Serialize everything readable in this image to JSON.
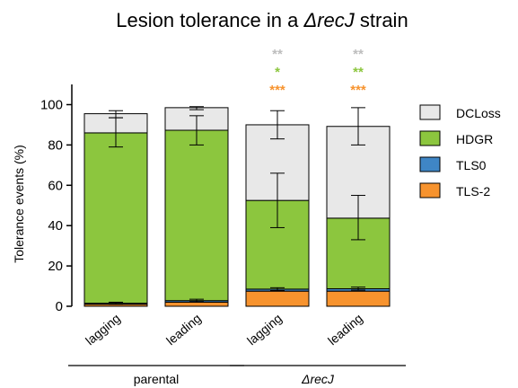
{
  "chart_data": {
    "type": "bar",
    "stacked": true,
    "title_prefix": "Lesion tolerance in a ",
    "title_strain": "ΔrecJ",
    "title_suffix": " strain",
    "ylabel": "Tolerance events (%)",
    "ylim": [
      0,
      110
    ],
    "yticks": [
      "0",
      "20",
      "40",
      "60",
      "80",
      "100"
    ],
    "categories": [
      "lagging",
      "leading",
      "lagging",
      "leading"
    ],
    "groups": [
      {
        "label": "parental",
        "categories": [
          0,
          1
        ]
      },
      {
        "label": "ΔrecJ",
        "categories": [
          2,
          3
        ]
      }
    ],
    "series": [
      {
        "name": "TLS-2",
        "color": "#f7932e",
        "values": [
          1.0,
          2.0,
          7.5,
          7.5
        ]
      },
      {
        "name": "TLS0",
        "color": "#3f86c6",
        "values": [
          0.5,
          0.8,
          1.0,
          1.2
        ]
      },
      {
        "name": "HDGR",
        "color": "#8cc63e",
        "values": [
          84.5,
          84.5,
          44.0,
          35.0
        ]
      },
      {
        "name": "DCLoss",
        "color": "#e8e8e8",
        "values": [
          9.5,
          11.2,
          37.5,
          45.5
        ]
      }
    ],
    "error_bars": [
      {
        "category": 0,
        "center": 86.0,
        "low": 79.0,
        "high": 93.5
      },
      {
        "category": 0,
        "center": 95.5,
        "low": 93.5,
        "high": 97.0
      },
      {
        "category": 0,
        "center": 1.5,
        "low": 1.0,
        "high": 2.0
      },
      {
        "category": 1,
        "center": 87.3,
        "low": 80.0,
        "high": 94.5
      },
      {
        "category": 1,
        "center": 98.5,
        "low": 97.5,
        "high": 99.0
      },
      {
        "category": 1,
        "center": 2.8,
        "low": 2.2,
        "high": 3.5
      },
      {
        "category": 2,
        "center": 52.5,
        "low": 39.0,
        "high": 66.0
      },
      {
        "category": 2,
        "center": 90.0,
        "low": 83.0,
        "high": 97.0
      },
      {
        "category": 2,
        "center": 8.5,
        "low": 7.8,
        "high": 9.2
      },
      {
        "category": 3,
        "center": 44.0,
        "low": 33.0,
        "high": 55.0
      },
      {
        "category": 3,
        "center": 89.5,
        "low": 80.0,
        "high": 98.5
      },
      {
        "category": 3,
        "center": 8.7,
        "low": 8.0,
        "high": 9.5
      }
    ],
    "significance": [
      {
        "category": 2,
        "labels": [
          {
            "text": "**",
            "color": "#bdbdbd"
          },
          {
            "text": "*",
            "color": "#8cc63e"
          },
          {
            "text": "***",
            "color": "#f7932e"
          }
        ]
      },
      {
        "category": 3,
        "labels": [
          {
            "text": "**",
            "color": "#bdbdbd"
          },
          {
            "text": "**",
            "color": "#8cc63e"
          },
          {
            "text": "***",
            "color": "#f7932e"
          }
        ]
      }
    ],
    "legend_order": [
      "DCLoss",
      "HDGR",
      "TLS0",
      "TLS-2"
    ],
    "legend_position": "right",
    "grid": false
  }
}
